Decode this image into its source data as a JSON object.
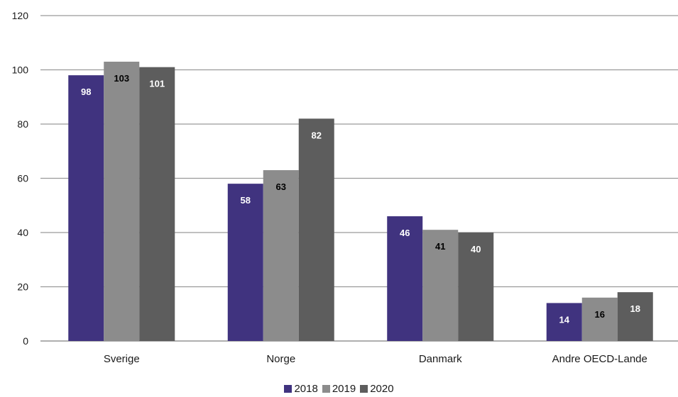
{
  "chart_data": {
    "type": "bar",
    "categories": [
      "Sverige",
      "Norge",
      "Danmark",
      "Andre OECD-Lande"
    ],
    "series": [
      {
        "name": "2018",
        "values": [
          98,
          58,
          46,
          14
        ],
        "color": "#40337f",
        "label_color": "#ffffff"
      },
      {
        "name": "2019",
        "values": [
          103,
          63,
          41,
          16
        ],
        "color": "#8c8c8c",
        "label_color": "#000000"
      },
      {
        "name": "2020",
        "values": [
          101,
          82,
          40,
          18
        ],
        "color": "#5d5d5d",
        "label_color": "#ffffff"
      }
    ],
    "title": "",
    "xlabel": "",
    "ylabel": "",
    "ylim": [
      0,
      120
    ],
    "yticks": [
      0,
      20,
      40,
      60,
      80,
      100,
      120
    ],
    "grid": true,
    "legend_position": "bottom-center"
  }
}
